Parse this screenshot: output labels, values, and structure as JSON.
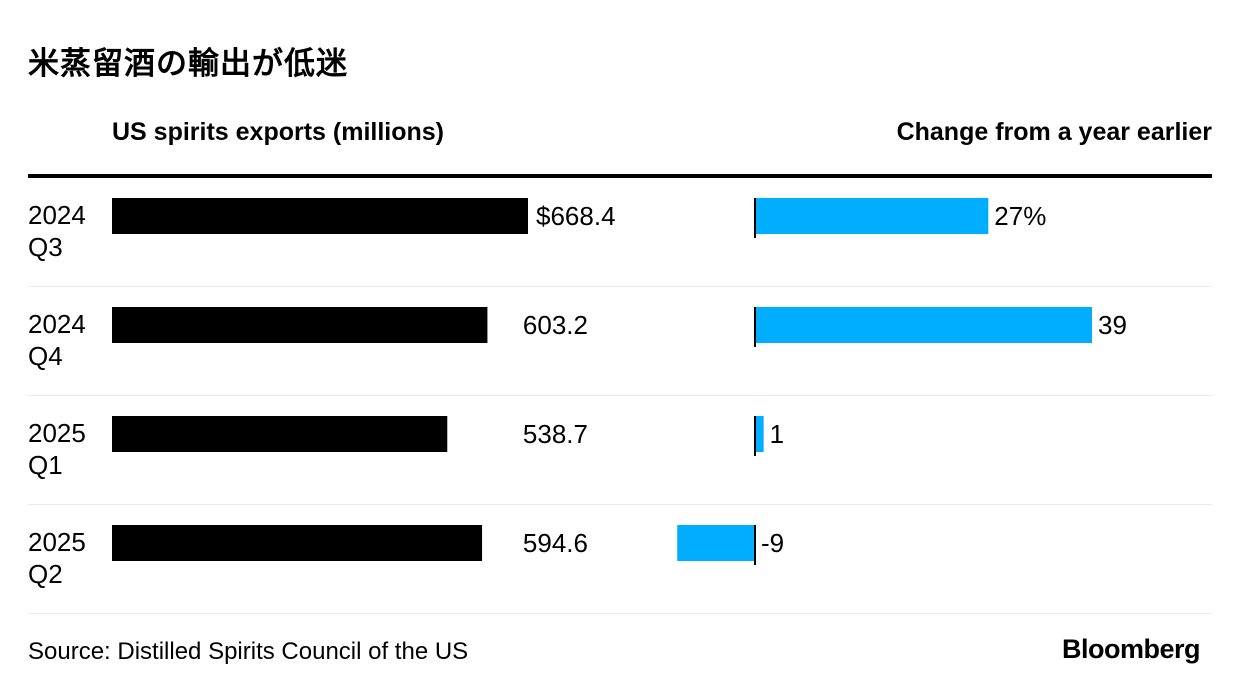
{
  "title": "米蒸留酒の輸出が低迷",
  "left_header": "US spirits exports (millions)",
  "right_header": "Change from a year earlier",
  "source": "Source: Distilled Spirits Council of the US",
  "brand": "Bloomberg",
  "colors": {
    "exports_bar": "#000000",
    "change_bar": "#00adff",
    "row_divider": "#ececec",
    "text": "#000000"
  },
  "chart_data": [
    {
      "type": "bar",
      "orientation": "horizontal",
      "title": "US spirits exports (millions)",
      "categories": [
        [
          "2024",
          "Q3"
        ],
        [
          "2024",
          "Q4"
        ],
        [
          "2025",
          "Q1"
        ],
        [
          "2025",
          "Q2"
        ]
      ],
      "values": [
        668.4,
        603.2,
        538.7,
        594.6
      ],
      "data_labels": [
        "$668.4",
        "603.2",
        "538.7",
        "594.6"
      ],
      "xlim": [
        0,
        668.4
      ]
    },
    {
      "type": "bar",
      "orientation": "horizontal",
      "title": "Change from a year earlier",
      "categories": [
        [
          "2024",
          "Q3"
        ],
        [
          "2024",
          "Q4"
        ],
        [
          "2025",
          "Q1"
        ],
        [
          "2025",
          "Q2"
        ]
      ],
      "values": [
        27,
        39,
        1,
        -9
      ],
      "data_labels": [
        "27%",
        "39",
        "1",
        "-9"
      ],
      "xlim": [
        -9,
        39
      ]
    }
  ]
}
